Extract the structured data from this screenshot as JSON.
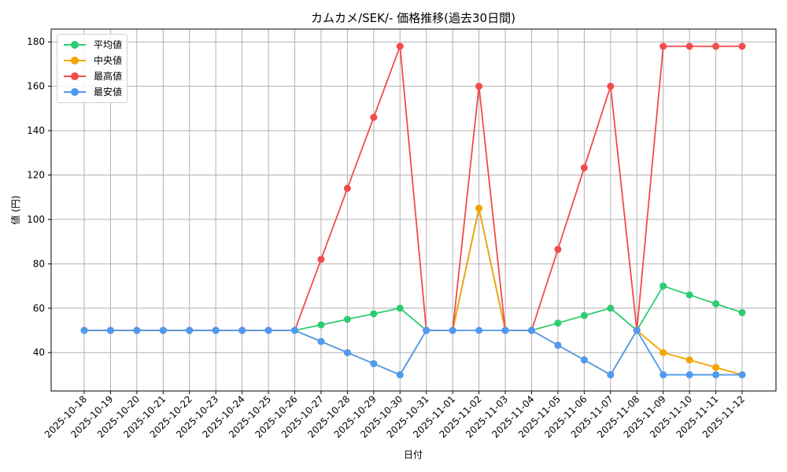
{
  "chart_data": {
    "type": "line",
    "title": "カムカメ/SEK/- 価格推移(過去30日間)",
    "xlabel": "日付",
    "ylabel": "値 (円)",
    "ylim": [
      22,
      185
    ],
    "yticks": [
      40,
      60,
      80,
      100,
      120,
      140,
      160,
      180
    ],
    "grid": true,
    "legend_position": "upper left",
    "x": [
      "2025-10-18",
      "2025-10-19",
      "2025-10-20",
      "2025-10-21",
      "2025-10-22",
      "2025-10-23",
      "2025-10-24",
      "2025-10-25",
      "2025-10-26",
      "2025-10-27",
      "2025-10-28",
      "2025-10-29",
      "2025-10-30",
      "2025-10-31",
      "2025-11-01",
      "2025-11-02",
      "2025-11-03",
      "2025-11-04",
      "2025-11-05",
      "2025-11-06",
      "2025-11-07",
      "2025-11-08",
      "2025-11-09",
      "2025-11-10",
      "2025-11-11",
      "2025-11-12"
    ],
    "series": [
      {
        "name": "平均値",
        "color": "#2ecc71",
        "values": [
          50,
          50,
          50,
          50,
          50,
          50,
          50,
          50,
          50,
          52.5,
          55,
          57.5,
          60,
          50,
          50,
          105,
          50,
          50,
          53.3,
          56.7,
          60,
          50,
          70,
          66,
          62,
          58
        ]
      },
      {
        "name": "中央値",
        "color": "#f5a300",
        "values": [
          50,
          50,
          50,
          50,
          50,
          50,
          50,
          50,
          50,
          45,
          40,
          35,
          30,
          50,
          50,
          105,
          50,
          50,
          43.3,
          36.7,
          30,
          50,
          40,
          36.7,
          33.3,
          30
        ]
      },
      {
        "name": "最高値",
        "color": "#f24b4b",
        "values": [
          50,
          50,
          50,
          50,
          50,
          50,
          50,
          50,
          50,
          82,
          114,
          146,
          178,
          50,
          50,
          160,
          50,
          50,
          86.5,
          123.3,
          160,
          50,
          178,
          178,
          178,
          178
        ]
      },
      {
        "name": "最安値",
        "color": "#4e9af1",
        "values": [
          50,
          50,
          50,
          50,
          50,
          50,
          50,
          50,
          50,
          45,
          40,
          35,
          30,
          50,
          50,
          50,
          50,
          50,
          43.3,
          36.7,
          30,
          50,
          30,
          30,
          30,
          30
        ]
      }
    ]
  }
}
